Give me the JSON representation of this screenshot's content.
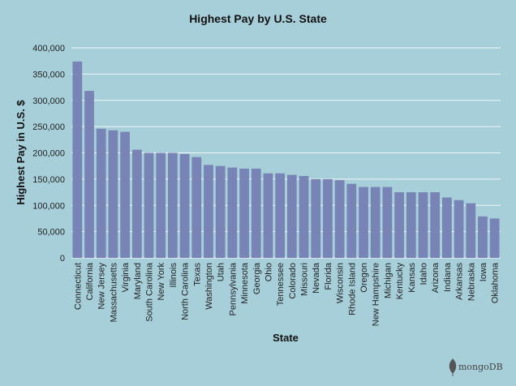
{
  "chart_data": {
    "type": "bar",
    "title": "Highest Pay by U.S. State",
    "xlabel": "State",
    "ylabel": "Highest Pay in U.S. $",
    "ylim": [
      0,
      400000
    ],
    "yticks": [
      "0",
      "50,000",
      "100,000",
      "150,000",
      "200,000",
      "250,000",
      "300,000",
      "350,000",
      "400,000"
    ],
    "grid": true,
    "bar_color": "#7984b6",
    "background_color": "#a7cfd9",
    "categories": [
      "Connecticut",
      "California",
      "New Jersey",
      "Massachusetts",
      "Virginia",
      "Maryland",
      "South Carolina",
      "New York",
      "Illinois",
      "North Carolina",
      "Texas",
      "Washington",
      "Utah",
      "Pennsylvania",
      "Minnesota",
      "Georgia",
      "Ohio",
      "Tennessee",
      "Colorado",
      "Missouri",
      "Nevada",
      "Florida",
      "Wisconsin",
      "Rhode Island",
      "Oregon",
      "New Hampshire",
      "Michigan",
      "Kentucky",
      "Kansas",
      "Idaho",
      "Arizona",
      "Indiana",
      "Arkansas",
      "Nebraska",
      "Iowa",
      "Oklahoma"
    ],
    "values": [
      374000,
      318000,
      246000,
      243000,
      240000,
      206000,
      200000,
      200000,
      200000,
      198000,
      192000,
      177000,
      175000,
      172000,
      170000,
      170000,
      161000,
      161000,
      158000,
      156000,
      150000,
      150000,
      148000,
      141000,
      135000,
      135000,
      135000,
      125000,
      125000,
      125000,
      125000,
      115000,
      110000,
      104000,
      79000,
      75000
    ]
  },
  "watermark": {
    "text": "mongoDB",
    "icon": "leaf-icon"
  }
}
